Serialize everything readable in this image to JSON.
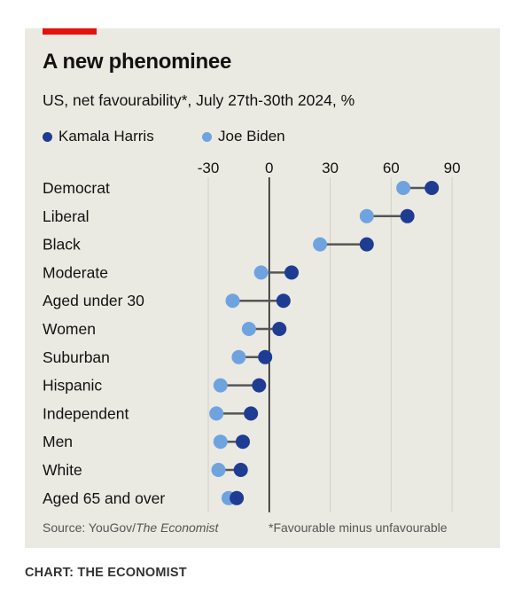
{
  "header": {
    "title": "A new phenominee",
    "subtitle": "US, net favourability*, July 27th-30th 2024, %"
  },
  "footer": {
    "source_prefix": "Source: YouGov/",
    "source_publication": "The Economist",
    "footnote": "*Favourable minus unfavourable",
    "credit": "CHART: THE ECONOMIST"
  },
  "colors": {
    "harris": "#1f3c93",
    "biden": "#6fa3e0",
    "connector": "#555555",
    "accent": "#e3120b",
    "background": "#eaeae2"
  },
  "chart_data": {
    "type": "dot-plot",
    "title": "A new phenominee",
    "subtitle": "US, net favourability*, July 27th-30th 2024, %",
    "xlim": [
      -30,
      100
    ],
    "xticks": [
      -30,
      0,
      30,
      60,
      90
    ],
    "tick_labels": [
      "-30",
      "0",
      "30",
      "60",
      "90"
    ],
    "grid": true,
    "legend_position": "top-left",
    "categories": [
      "Democrat",
      "Liberal",
      "Black",
      "Moderate",
      "Aged under 30",
      "Women",
      "Suburban",
      "Hispanic",
      "Independent",
      "Men",
      "White",
      "Aged 65 and over"
    ],
    "series": [
      {
        "name": "Kamala Harris",
        "values": [
          80,
          68,
          48,
          11,
          7,
          5,
          -2,
          -5,
          -9,
          -13,
          -14,
          -16
        ]
      },
      {
        "name": "Joe Biden",
        "values": [
          66,
          48,
          25,
          -4,
          -18,
          -10,
          -15,
          -24,
          -26,
          -24,
          -25,
          -20
        ]
      }
    ]
  }
}
